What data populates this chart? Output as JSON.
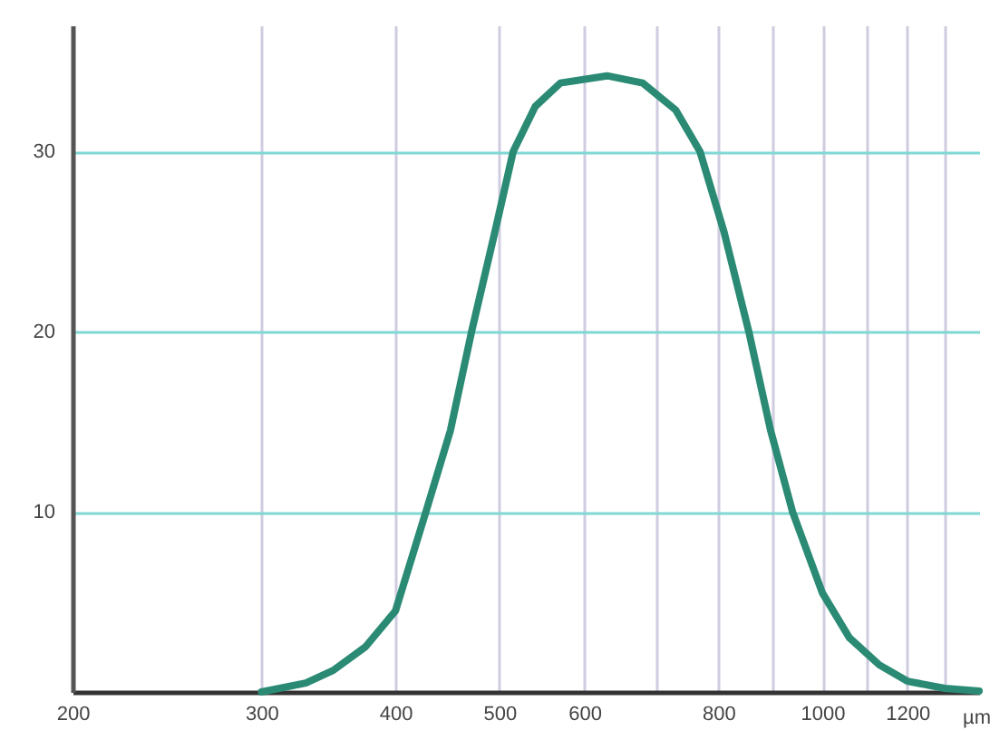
{
  "chart_data": {
    "type": "line",
    "xlabel": "µm",
    "log": "x",
    "x": [
      300,
      330,
      350,
      375,
      400,
      427,
      450,
      471,
      495,
      515,
      540,
      570,
      630,
      680,
      730,
      769,
      810,
      854,
      895,
      938,
      1000,
      1060,
      1130,
      1200,
      1300,
      1400
    ],
    "series": [
      {
        "color": "#2a8a74",
        "values": [
          0,
          0.5,
          1.2,
          2.5,
          4.5,
          10,
          14.5,
          20,
          25.5,
          30,
          32.5,
          33.8,
          34.2,
          33.8,
          32.3,
          30,
          25.5,
          20,
          14.5,
          10,
          5.5,
          3,
          1.5,
          0.6,
          0.2,
          0.05
        ]
      }
    ],
    "xlim": [
      200,
      1400
    ],
    "xticks": [
      200,
      300,
      400,
      500,
      600,
      {
        "value": 700,
        "label": null
      },
      800,
      {
        "value": 900,
        "label": null
      },
      1000,
      {
        "value": 1100,
        "label": null
      },
      1200,
      {
        "value": 1300,
        "label": null
      }
    ],
    "ylim": [
      0,
      37
    ],
    "yticks": [
      10,
      20,
      30
    ],
    "grid": true,
    "line_style": "solid",
    "marker": "none"
  }
}
